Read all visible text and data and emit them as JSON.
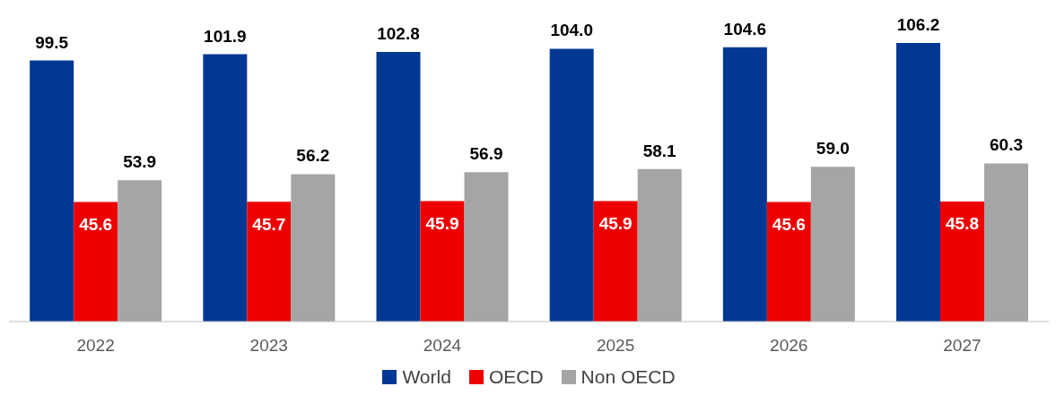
{
  "chart_data": {
    "type": "bar",
    "categories": [
      "2022",
      "2023",
      "2024",
      "2025",
      "2026",
      "2027"
    ],
    "series": [
      {
        "name": "World",
        "color": "#003893",
        "values": [
          99.5,
          101.9,
          102.8,
          104.0,
          104.6,
          106.2
        ],
        "value_labels": [
          "99.5",
          "101.9",
          "102.8",
          "104.0",
          "104.6",
          "106.2"
        ]
      },
      {
        "name": "OECD",
        "color": "#ee0000",
        "values": [
          45.6,
          45.7,
          45.9,
          45.9,
          45.6,
          45.8
        ],
        "value_labels": [
          "45.6",
          "45.7",
          "45.9",
          "45.9",
          "45.6",
          "45.8"
        ]
      },
      {
        "name": "Non OECD",
        "color": "#a5a5a5",
        "values": [
          53.9,
          56.2,
          56.9,
          58.1,
          59.0,
          60.3
        ],
        "value_labels": [
          "53.9",
          "56.2",
          "56.9",
          "58.1",
          "59.0",
          "60.3"
        ]
      }
    ],
    "legend": "bottom",
    "grid": false
  }
}
